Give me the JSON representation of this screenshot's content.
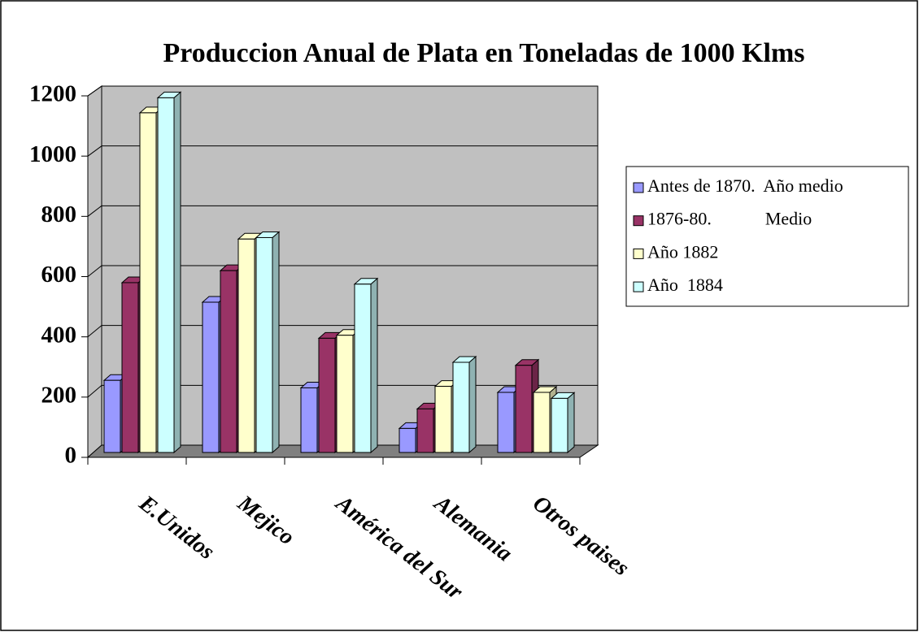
{
  "chart_data": {
    "type": "bar3d",
    "title": "Produccion Anual de Plata en Toneladas de 1000 Klms",
    "categories": [
      "E.Unidos",
      "Mejico",
      "América del Sur",
      "Alemania",
      "Otros paises"
    ],
    "series": [
      {
        "name": "Antes de 1870.  Año medio",
        "color": "#9999ff",
        "values": [
          240,
          500,
          215,
          80,
          200
        ]
      },
      {
        "name": "1876-80.            Medio",
        "color": "#993366",
        "values": [
          565,
          605,
          380,
          145,
          290
        ]
      },
      {
        "name": "Año 1882",
        "color": "#ffffcc",
        "values": [
          1130,
          710,
          390,
          220,
          200
        ]
      },
      {
        "name": "Año  1884",
        "color": "#ccffff",
        "values": [
          1180,
          715,
          560,
          300,
          180
        ]
      }
    ],
    "ylim": [
      0,
      1200
    ],
    "yticks": [
      0,
      200,
      400,
      600,
      800,
      1000,
      1200
    ],
    "grid": true,
    "legend": "right"
  }
}
